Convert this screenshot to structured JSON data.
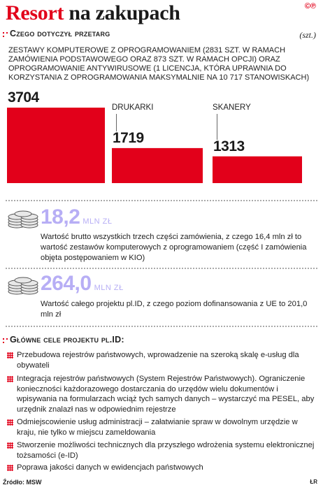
{
  "header": {
    "title_part1": "Resort",
    "title_part2": "na zakupach",
    "copyright_mark": "©℗"
  },
  "section1": {
    "heading": "Czego dotyczył przetarg",
    "unit": "(szt.)",
    "description": "Zestawy komputerowe z oprogramowaniem (2831 szt. w ramach zamówienia podstawowego oraz 873 szt. w ramach opcji) oraz oprogramowanie antywirusowe (1 licencja, która uprawnia do korzystania z oprogramowania maksymalnie na 10 717 stanowiskach)"
  },
  "chart_data": {
    "type": "bar",
    "categories": [
      "",
      "Drukarki",
      "Skanery"
    ],
    "values": [
      3704,
      1719,
      1313
    ],
    "ylim": [
      0,
      3704
    ],
    "bar_color": "#e2001a",
    "grid": false
  },
  "stats": [
    {
      "value": "18,2",
      "unit": "mln zł",
      "note": "Wartość  brutto wszystkich trzech części zamówienia, z czego 16,4 mln zł to wartość zestawów komputerowych z oprogramowaniem (część I zamówienia objęta postępowaniem w KIO)"
    },
    {
      "value": "264,0",
      "unit": "mln zł",
      "note": "Wartość całego projektu pl.ID, z czego poziom dofinansowania z UE to 201,0 mln zł"
    }
  ],
  "section2": {
    "heading": "Główne cele projektu pl.ID:",
    "goals": [
      "Przebudowa rejestrów państwowych, wprowadzenie na szeroką skalę e-usług dla obywateli",
      "Integracja rejestrów państwowych (System Rejestrów Państwowych). Ograniczenie konieczności każdorazowego dostarczania do urzędów wielu dokumentów i wpisywania na formularzach wciąż tych samych danych – wystarczyć ma PESEL, aby urzędnik znalazł nas w odpowiednim rejestrze",
      "Odmiejscowienie usług administracji – załatwianie spraw w dowolnym urzędzie w kraju, nie tylko w miejscu zameldowania",
      "Stworzenie możliwości technicznych dla przyszłego wdrożenia systemu elektronicznej tożsamości (e-ID)",
      "Poprawa jakości danych w ewidencjach państwowych"
    ]
  },
  "footer": {
    "source": "Źródło: MSW",
    "author": "ŁR"
  },
  "colors": {
    "accent": "#e2001a",
    "stat_number": "#b7aef5"
  }
}
